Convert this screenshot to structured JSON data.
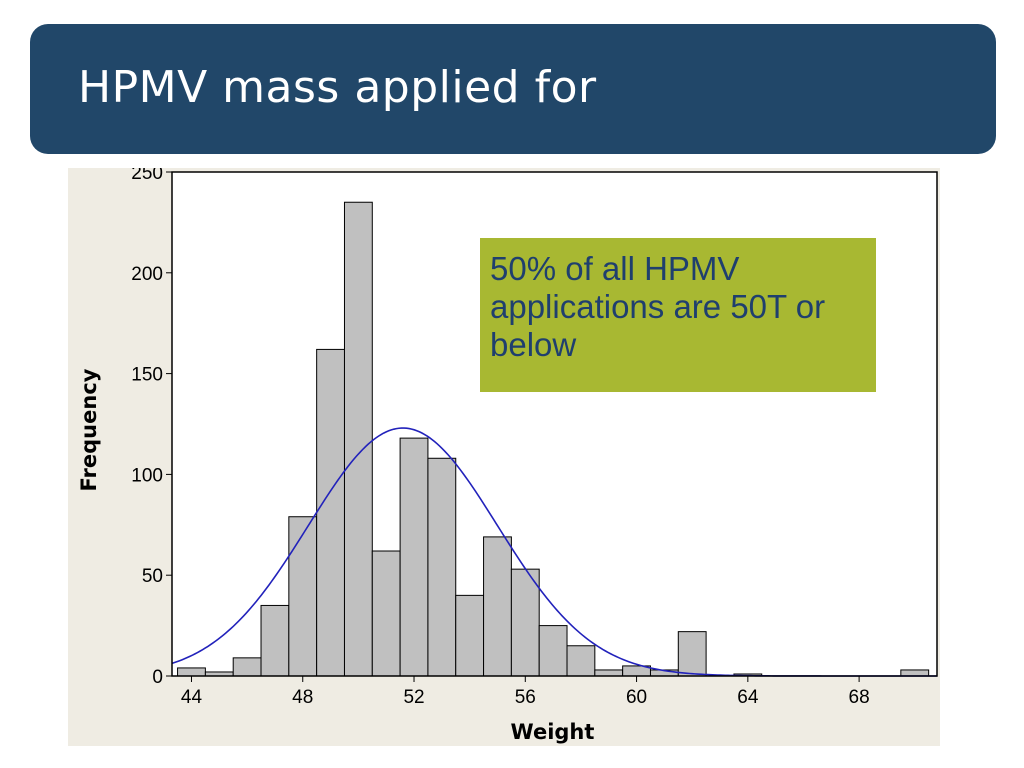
{
  "slide": {
    "title": "HPMV mass applied for"
  },
  "callout": {
    "text": "50% of all HPMV applications are 50T or below"
  },
  "colors": {
    "title_bg": "#214769",
    "callout_bg": "#a8b832",
    "callout_text": "#1f3f6e",
    "bar_fill": "#c0c0c0",
    "curve": "#2222bb",
    "panel_bg": "#efece3"
  },
  "chart_data": {
    "type": "bar",
    "subtype": "histogram",
    "title": "",
    "xlabel": "Weight",
    "ylabel": "Frequency",
    "xlim": [
      43.3,
      70.8
    ],
    "ylim": [
      0,
      250
    ],
    "xticks": [
      44,
      48,
      52,
      56,
      60,
      64,
      68
    ],
    "yticks": [
      0,
      50,
      100,
      150,
      200,
      250
    ],
    "bin_width": 1,
    "bins": [
      {
        "start": 43.5,
        "value": 4
      },
      {
        "start": 44.5,
        "value": 2
      },
      {
        "start": 45.5,
        "value": 9
      },
      {
        "start": 46.5,
        "value": 35
      },
      {
        "start": 47.5,
        "value": 79
      },
      {
        "start": 48.5,
        "value": 162
      },
      {
        "start": 49.5,
        "value": 235
      },
      {
        "start": 50.5,
        "value": 62
      },
      {
        "start": 51.5,
        "value": 118
      },
      {
        "start": 52.5,
        "value": 108
      },
      {
        "start": 53.5,
        "value": 40
      },
      {
        "start": 54.5,
        "value": 69
      },
      {
        "start": 55.5,
        "value": 53
      },
      {
        "start": 56.5,
        "value": 25
      },
      {
        "start": 57.5,
        "value": 15
      },
      {
        "start": 58.5,
        "value": 3
      },
      {
        "start": 59.5,
        "value": 5
      },
      {
        "start": 60.5,
        "value": 3
      },
      {
        "start": 61.5,
        "value": 22
      },
      {
        "start": 62.5,
        "value": 0
      },
      {
        "start": 63.5,
        "value": 1
      },
      {
        "start": 64.5,
        "value": 0
      },
      {
        "start": 65.5,
        "value": 0
      },
      {
        "start": 66.5,
        "value": 0
      },
      {
        "start": 67.5,
        "value": 0
      },
      {
        "start": 68.5,
        "value": 0
      },
      {
        "start": 69.5,
        "value": 3
      }
    ],
    "fit_curve": {
      "type": "normal",
      "mean": 51.6,
      "peak": 123,
      "sd": 3.4
    },
    "grid": false,
    "legend": "none"
  }
}
